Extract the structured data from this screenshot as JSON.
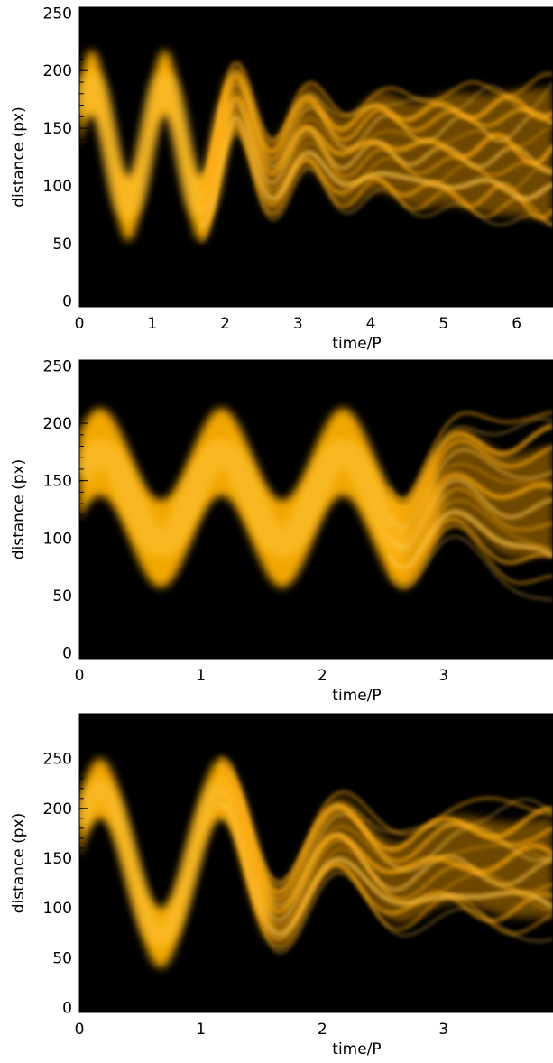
{
  "chart_data": [
    {
      "type": "heatmap",
      "title": "",
      "xlabel": "time/P",
      "ylabel": "distance (px)",
      "xlim": [
        0,
        6.5
      ],
      "ylim": [
        -5,
        255
      ],
      "xticks": [
        0,
        1,
        2,
        3,
        4,
        5,
        6
      ],
      "yticks": [
        0,
        50,
        100,
        150,
        200,
        250
      ],
      "colormap": [
        "#000000",
        "#ffb000"
      ],
      "center": 135,
      "amplitude": 55,
      "sheath_halfwidth": 28,
      "laminar_until": 1.8,
      "outer_envelope": {
        "upper_at_end": 185,
        "lower_at_end": 70
      }
    },
    {
      "type": "heatmap",
      "title": "",
      "xlabel": "time/P",
      "ylabel": "distance (px)",
      "xlim": [
        0,
        3.9
      ],
      "ylim": [
        -5,
        255
      ],
      "xticks": [
        0,
        1,
        2,
        3
      ],
      "yticks": [
        0,
        50,
        100,
        150,
        200,
        250
      ],
      "colormap": [
        "#000000",
        "#ffb000"
      ],
      "center": 135,
      "amplitude": 40,
      "sheath_halfwidth": 38,
      "laminar_until": 2.7,
      "outer_envelope": {
        "upper_at_end": 180,
        "lower_at_end": 85
      }
    },
    {
      "type": "heatmap",
      "title": "",
      "xlabel": "time/P",
      "ylabel": "distance (px)",
      "xlim": [
        0,
        3.9
      ],
      "ylim": [
        -5,
        295
      ],
      "xticks": [
        0,
        1,
        2,
        3
      ],
      "yticks": [
        0,
        50,
        100,
        150,
        200,
        250
      ],
      "colormap": [
        "#000000",
        "#ffb000"
      ],
      "center": 145,
      "amplitude": 75,
      "sheath_halfwidth": 30,
      "laminar_until": 1.3,
      "outer_envelope": {
        "upper_at_end": 190,
        "lower_at_end": 90
      }
    }
  ]
}
